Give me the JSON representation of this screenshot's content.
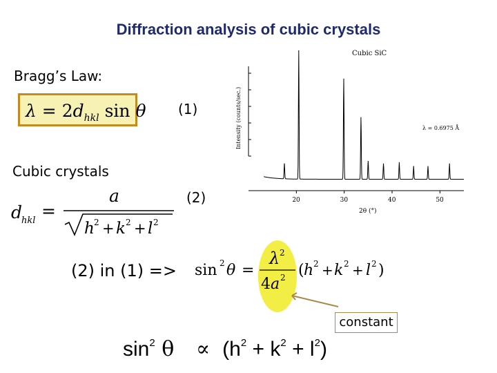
{
  "title": "Diffraction analysis of cubic crystals",
  "bragg": {
    "heading": "Bragg’s Law:",
    "number": "(1)"
  },
  "cubic": {
    "heading": "Cubic crystals",
    "number": "(2)"
  },
  "combined": {
    "label": "(2) in (1) =>"
  },
  "annotation": {
    "label": "constant"
  },
  "chart_data": {
    "type": "line",
    "title": "Cubic SiC",
    "annotation": "λ = 0.6975 Å",
    "ylabel": "Intensity (counts/sec.)",
    "xlabel": "2θ (°)",
    "xlim": [
      10,
      55
    ],
    "xticks": [
      "20",
      "30",
      "40",
      "50"
    ],
    "peaks_x": [
      17.5,
      20.5,
      29.9,
      33.5,
      35.0,
      38.2,
      41.5,
      44.5,
      47.5,
      52.0
    ],
    "peaks_rel_intensity": [
      0.12,
      1.0,
      0.78,
      0.48,
      0.14,
      0.12,
      0.13,
      0.1,
      0.1,
      0.12
    ]
  },
  "colors": {
    "title": "#1f2a6e",
    "highlight_fill": "#f7f2b4",
    "highlight_border": "#c58a1e",
    "ellipse": "#f3ee45",
    "arrow": "#a98a48"
  }
}
